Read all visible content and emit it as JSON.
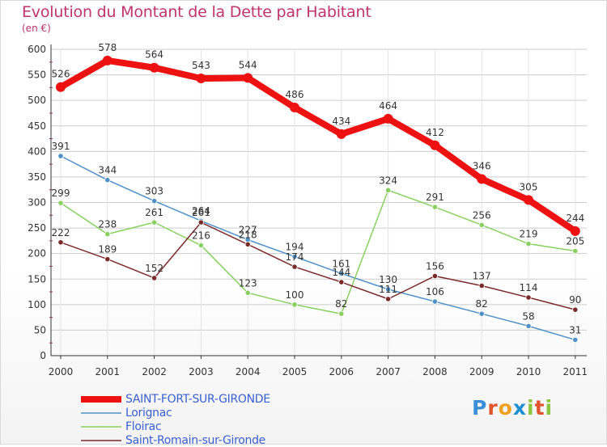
{
  "header": {
    "title": "Evolution du Montant de la Dette par Habitant",
    "subtitle": "(en €)"
  },
  "logo": {
    "text": "Proxiti"
  },
  "colors": {
    "title": "#c0336c",
    "legend_text": "#3a5fd0",
    "axis": "#333333",
    "grid": "#cccccc",
    "tick_accent": "#c0336c"
  },
  "chart_data": {
    "type": "line",
    "title": "Evolution du Montant de la Dette par Habitant",
    "ylabel": "(en €)",
    "xlabel": "",
    "ylim": [
      0,
      600
    ],
    "yticks": [
      0,
      50,
      100,
      150,
      200,
      250,
      300,
      350,
      400,
      450,
      500,
      550,
      600
    ],
    "categories": [
      "2000",
      "2001",
      "2002",
      "2003",
      "2004",
      "2005",
      "2006",
      "2007",
      "2008",
      "2009",
      "2010",
      "2011"
    ],
    "grid": true,
    "legend_position": "bottom-left",
    "series": [
      {
        "name": "SAINT-FORT-SUR-GIRONDE",
        "color": "#ee1111",
        "values": [
          526,
          578,
          564,
          543,
          544,
          486,
          434,
          464,
          412,
          346,
          305,
          244
        ],
        "labels": [
          "526",
          "578",
          "564",
          "543",
          "544",
          "486",
          "434",
          "464",
          "412",
          "346",
          "305",
          "244"
        ],
        "thick": true
      },
      {
        "name": "Lorignac",
        "color": "#4f90c8",
        "values": [
          391,
          344,
          303,
          264,
          227,
          194,
          161,
          130,
          106,
          82,
          58,
          31
        ],
        "labels": [
          "391",
          "344",
          "303",
          "264",
          "227",
          "194",
          "161",
          "130",
          "106",
          "82",
          "58",
          "31"
        ],
        "thick": false
      },
      {
        "name": "Floirac",
        "color": "#88d060",
        "values": [
          299,
          238,
          261,
          216,
          123,
          100,
          82,
          324,
          291,
          256,
          219,
          205
        ],
        "labels": [
          "299",
          "238",
          "261",
          "216",
          "123",
          "100",
          "82",
          "324",
          "291",
          "256",
          "219",
          "205"
        ],
        "thick": false
      },
      {
        "name": "Saint-Romain-sur-Gironde",
        "color": "#7b2a2a",
        "values": [
          222,
          189,
          152,
          261,
          218,
          174,
          144,
          111,
          156,
          137,
          114,
          90
        ],
        "labels": [
          "222",
          "189",
          "152",
          "261",
          "218",
          "174",
          "144",
          "111",
          "156",
          "137",
          "114",
          "90"
        ],
        "thick": false
      }
    ]
  }
}
